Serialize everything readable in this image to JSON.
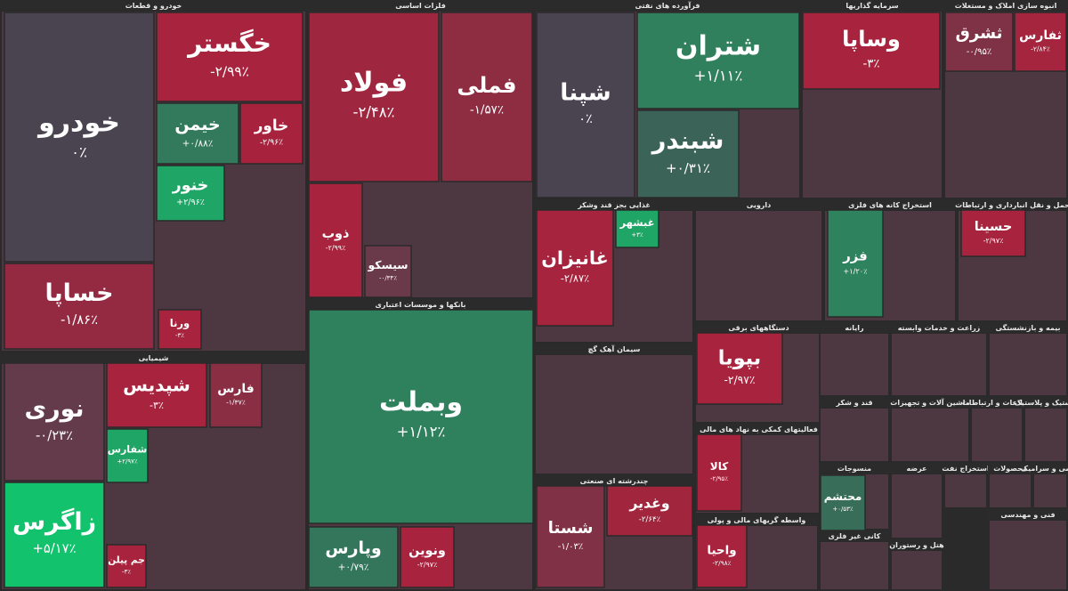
{
  "chart_data": {
    "type": "treemap",
    "colors": {
      "negative": "#a8233d",
      "neutral": "#4a4450",
      "positive": "#12c26c",
      "header": "#2b2b2b",
      "body": "#4d3740"
    },
    "groups": [
      {
        "name": "خودرو و قطعات",
        "labels": [
          "خودرو",
          "خساپا",
          "خگستر",
          "خیمن",
          "خاور",
          "خنور",
          "ورنا"
        ],
        "values": [
          0,
          -1.86,
          -2.99,
          0.88,
          -2.96,
          2.96,
          -3
        ],
        "value_labels": [
          "۰٪",
          "-۱/۸۶٪",
          "-۲/۹۹٪",
          "+۰/۸۸٪",
          "-۲/۹۶٪",
          "+۲/۹۶٪",
          "-۳٪"
        ]
      },
      {
        "name": "شیمیایی",
        "labels": [
          "نوری",
          "زاگرس",
          "شپدیس",
          "فارس",
          "شفارس",
          "جم پیلن"
        ],
        "values": [
          -0.23,
          5.17,
          -3,
          -1.37,
          2.97,
          -3
        ],
        "value_labels": [
          "-۰/۲۳٪",
          "+۵/۱۷٪",
          "-۳٪",
          "-۱/۳۷٪",
          "+۲/۹۷٪",
          "-۳٪"
        ]
      },
      {
        "name": "فلزات اساسی",
        "labels": [
          "فولاد",
          "فملی",
          "ذوب",
          "سیسکو"
        ],
        "values": [
          -2.48,
          -1.57,
          -2.99,
          -0.34
        ],
        "value_labels": [
          "-۲/۴۸٪",
          "-۱/۵۷٪",
          "-۲/۹۹٪",
          "-۰/۳۴٪"
        ]
      },
      {
        "name": "بانکها و موسسات اعتباری",
        "labels": [
          "وبملت",
          "وپارس",
          "ونوین"
        ],
        "values": [
          1.12,
          0.79,
          -2.97
        ],
        "value_labels": [
          "+۱/۱۲٪",
          "+۰/۷۹٪",
          "-۲/۹۷٪"
        ]
      },
      {
        "name": "فرآورده های نفتی",
        "labels": [
          "شپنا",
          "شتران",
          "شبندر"
        ],
        "values": [
          0,
          1.11,
          0.31
        ],
        "value_labels": [
          "۰٪",
          "+۱/۱۱٪",
          "+۰/۳۱٪"
        ]
      },
      {
        "name": "غذایی بجز قند وشکر",
        "labels": [
          "غانیزان",
          "غبشهر"
        ],
        "values": [
          -2.87,
          3
        ],
        "value_labels": [
          "-۲/۸۷٪",
          "+۳٪"
        ]
      },
      {
        "name": "سیمان آهک گچ"
      },
      {
        "name": "چندرشته ای صنعتی",
        "labels": [
          "شستا",
          "وغدیر"
        ],
        "values": [
          -1.03,
          -2.64
        ],
        "value_labels": [
          "-۱/۰۳٪",
          "-۲/۶۴٪"
        ]
      },
      {
        "name": "سرمایه گذاریها",
        "labels": [
          "وساپا"
        ],
        "values": [
          -3
        ],
        "value_labels": [
          "-۳٪"
        ]
      },
      {
        "name": "انبوه سازی املاک و مستغلات",
        "labels": [
          "ثشرق",
          "ثفارس"
        ],
        "values": [
          -0.95,
          -2.84
        ],
        "value_labels": [
          "-۰/۹۵٪",
          "-۲/۸۴٪"
        ]
      },
      {
        "name": "دارویی"
      },
      {
        "name": "دستگاههای برقی",
        "labels": [
          "بپویا"
        ],
        "values": [
          -2.97
        ],
        "value_labels": [
          "-۲/۹۷٪"
        ]
      },
      {
        "name": "فعالیتهای کمکی به نهاد های مالی",
        "labels": [
          "کالا"
        ],
        "values": [
          -2.95
        ],
        "value_labels": [
          "-۲/۹۵٪"
        ]
      },
      {
        "name": "واسطه گریهای مالی و پولی",
        "labels": [
          "واحیا"
        ],
        "values": [
          -2.98
        ],
        "value_labels": [
          "-۲/۹۸٪"
        ]
      },
      {
        "name": "استخراج کانه های فلزی",
        "labels": [
          "فزر"
        ],
        "values": [
          1.2
        ],
        "value_labels": [
          "+۱/۲۰٪"
        ]
      },
      {
        "name": "حمل و نقل انبارداری و ارتباطات",
        "labels": [
          "حسینا"
        ],
        "values": [
          -2.97
        ],
        "value_labels": [
          "-۲/۹۷٪"
        ]
      },
      {
        "name": "رایانه"
      },
      {
        "name": "زراعت و خدمات وابسته"
      },
      {
        "name": "بیمه و بازنشستگی"
      },
      {
        "name": "قند و شکر"
      },
      {
        "name": "ماشین آلات و تجهیزات"
      },
      {
        "name": "اطلاعات و ارتباطات"
      },
      {
        "name": "لاستیک و پلاستیک"
      },
      {
        "name": "منسوجات",
        "labels": [
          "محتشم"
        ],
        "values": [
          0.53
        ],
        "value_labels": [
          "+۰/۵۳٪"
        ]
      },
      {
        "name": "عرضه"
      },
      {
        "name": "استخراج نفت"
      },
      {
        "name": "محصولات"
      },
      {
        "name": "کاشی و سرامیک"
      },
      {
        "name": "فنی و مهندسی"
      },
      {
        "name": "کانی غیر فلزی"
      },
      {
        "name": "هتل و رستوران"
      }
    ]
  }
}
